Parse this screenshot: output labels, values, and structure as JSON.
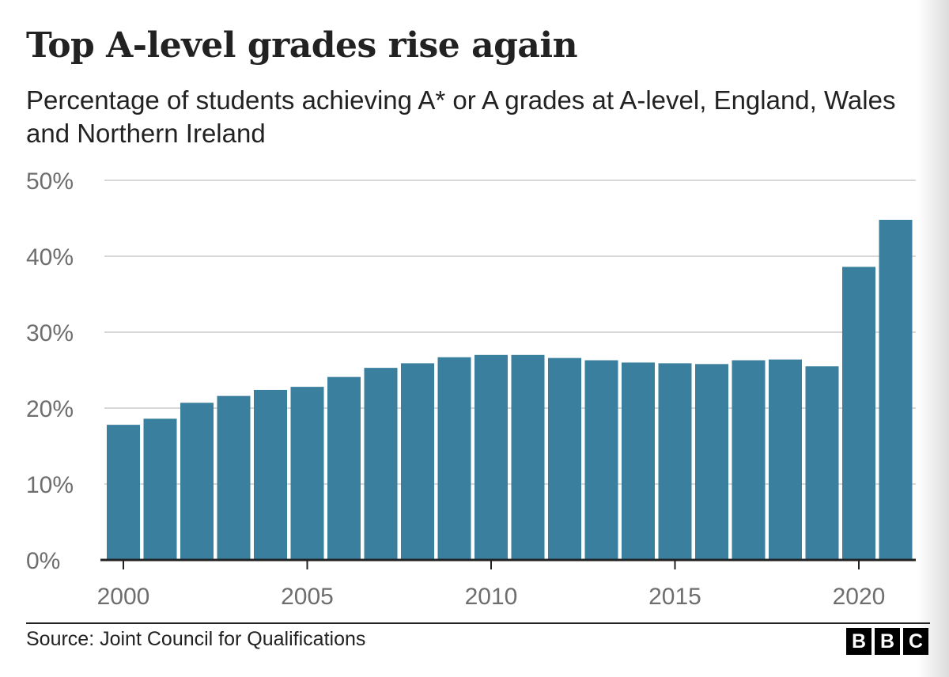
{
  "title": "Top A-level grades rise again",
  "subtitle": "Percentage of students achieving A* or A grades at A-level, England, Wales and Northern Ireland",
  "source": "Source: Joint Council for Qualifications",
  "logo": [
    "B",
    "B",
    "C"
  ],
  "colors": {
    "bar": "#3a7f9e",
    "grid": "#cccccc",
    "axis": "#222222",
    "tick_text": "#6e6e6e"
  },
  "chart_data": {
    "type": "bar",
    "categories": [
      "2000",
      "2001",
      "2002",
      "2003",
      "2004",
      "2005",
      "2006",
      "2007",
      "2008",
      "2009",
      "2010",
      "2011",
      "2012",
      "2013",
      "2014",
      "2015",
      "2016",
      "2017",
      "2018",
      "2019",
      "2020",
      "2021"
    ],
    "values": [
      17.8,
      18.6,
      20.7,
      21.6,
      22.4,
      22.8,
      24.1,
      25.3,
      25.9,
      26.7,
      27.0,
      27.0,
      26.6,
      26.3,
      26.0,
      25.9,
      25.8,
      26.3,
      26.4,
      25.5,
      38.6,
      44.8
    ],
    "x_tick_labels": [
      "2000",
      "2005",
      "2010",
      "2015",
      "2020"
    ],
    "y_tick_labels": [
      "0%",
      "10%",
      "20%",
      "30%",
      "40%",
      "50%"
    ],
    "ylim": [
      0,
      50
    ],
    "ylabel": "",
    "xlabel": "",
    "grid": true,
    "legend": "none"
  }
}
